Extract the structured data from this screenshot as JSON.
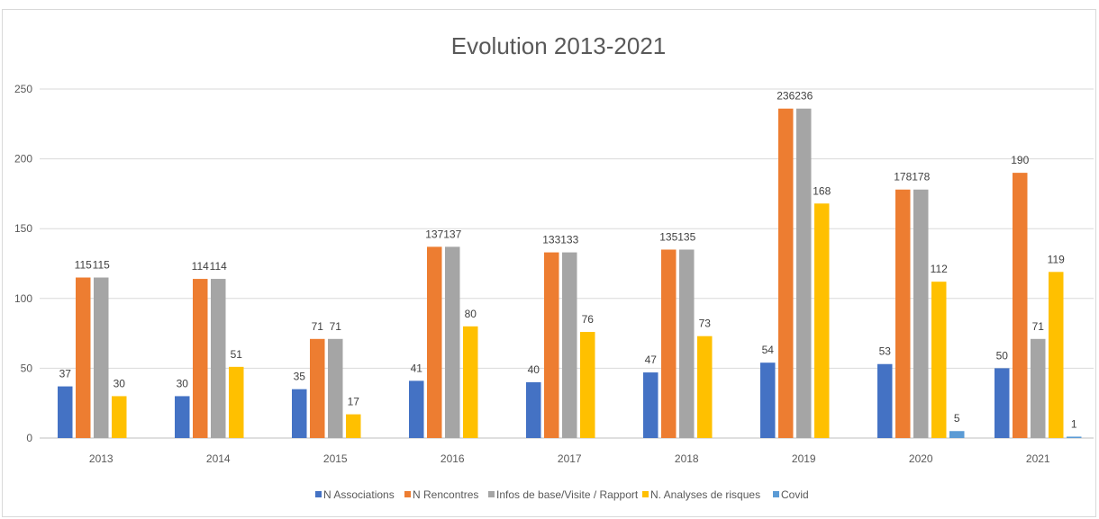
{
  "chart_data": {
    "type": "bar",
    "title": "Evolution 2013-2021",
    "xlabel": "",
    "ylabel": "",
    "categories": [
      "2013",
      "2014",
      "2015",
      "2016",
      "2017",
      "2018",
      "2019",
      "2020",
      "2021"
    ],
    "series": [
      {
        "name": "N Associations",
        "color": "#4472c4",
        "values": [
          37,
          30,
          35,
          41,
          40,
          47,
          54,
          53,
          50
        ],
        "labels": [
          "37",
          "30",
          "35",
          "41",
          "40",
          "47",
          "54",
          "53",
          "50"
        ]
      },
      {
        "name": "N Rencontres",
        "color": "#ed7d31",
        "values": [
          115,
          114,
          71,
          137,
          133,
          135,
          236,
          178,
          190
        ],
        "labels": [
          "115",
          "114",
          "71",
          "137",
          "133",
          "135",
          "236",
          "178",
          "190"
        ]
      },
      {
        "name": "Infos de base/Visite / Rapport",
        "color": "#a5a5a5",
        "values": [
          115,
          114,
          71,
          137,
          133,
          135,
          236,
          178,
          71
        ],
        "labels": [
          "115",
          "114",
          "71",
          "137",
          "133",
          "135",
          "236",
          "178",
          "71"
        ]
      },
      {
        "name": "N. Analyses de risques",
        "color": "#ffc000",
        "values": [
          30,
          51,
          17,
          80,
          76,
          73,
          168,
          112,
          119
        ],
        "labels": [
          "30",
          "51",
          "17",
          "80",
          "76",
          "73",
          "168",
          "112",
          "119"
        ]
      },
      {
        "name": "Covid",
        "color": "#5b9bd5",
        "values": [
          0,
          0,
          0,
          0,
          0,
          0,
          0,
          5,
          1
        ],
        "labels": [
          "",
          "",
          "",
          "",
          "",
          "",
          "",
          "5",
          "1"
        ]
      }
    ],
    "ylim": [
      0,
      250
    ],
    "yticks": [
      "0",
      "50",
      "100",
      "150",
      "200",
      "250"
    ],
    "grid": true,
    "legend_position": "bottom"
  }
}
